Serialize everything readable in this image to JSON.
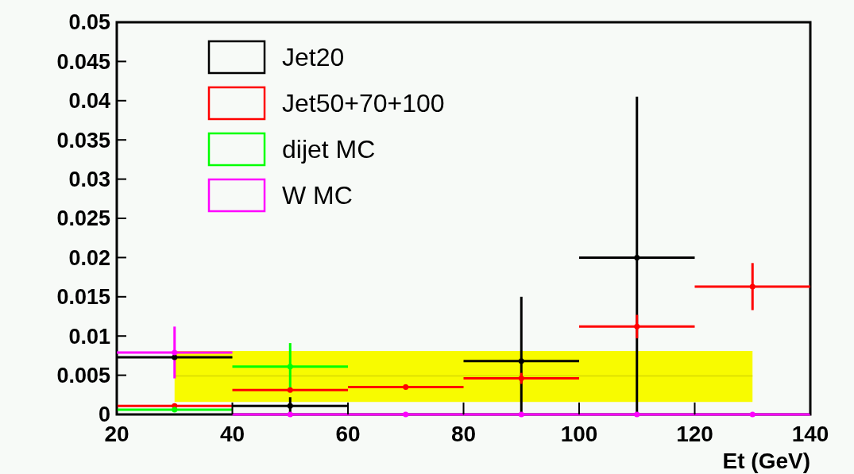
{
  "chart_data": {
    "type": "scatter",
    "xlabel": "Et (GeV)",
    "xlim": [
      20,
      140
    ],
    "ylim": [
      0,
      0.05
    ],
    "xticks": [
      20,
      40,
      60,
      80,
      100,
      120,
      140
    ],
    "yticks": [
      {
        "value": 0,
        "label": "0"
      },
      0.005,
      0.01,
      0.015,
      0.02,
      0.025,
      0.03,
      0.035,
      0.04,
      0.045,
      0.05
    ],
    "marker": "circle",
    "legend": "top left",
    "grid": false,
    "series": [
      {
        "type": "line",
        "marker": "none",
        "color": "#d8da00",
        "x": [
          30,
          80,
          130
        ],
        "values": [
          0.0049,
          0.0049,
          0.0049
        ],
        "lower": [
          0.0016,
          0.0016,
          0.0016
        ],
        "upper": [
          0.0081,
          0.0081,
          0.0081
        ]
      },
      {
        "name": "Jet20",
        "color": "#000000",
        "x": [
          30,
          50,
          90,
          110
        ],
        "values": [
          0.0073,
          0.0011,
          0.0068,
          0.02
        ],
        "errors": [
          null,
          0.0011,
          [
            0,
            0.015
          ],
          [
            0,
            0.0405
          ]
        ],
        "xerrors": [
          10,
          10,
          10,
          10
        ]
      },
      {
        "name": "Jet50+70+100",
        "color": "#ff0000",
        "x": [
          30,
          50,
          70,
          90,
          110,
          130
        ],
        "values": [
          0.0011,
          0.0031,
          0.0035,
          0.0046,
          0.0112,
          0.0163
        ],
        "errors": [
          null,
          null,
          0.0003,
          0.0007,
          0.0015,
          0.003
        ],
        "xerrors": [
          10,
          10,
          10,
          10,
          10,
          10
        ]
      },
      {
        "name": "dijet MC",
        "color": "#00ff00",
        "x": [
          30,
          50
        ],
        "values": [
          0.0006,
          0.0061
        ],
        "errors": [
          null,
          0.003
        ],
        "xerrors": [
          10,
          10
        ]
      },
      {
        "name": "W MC",
        "color": "#ff00ff",
        "x": [
          30,
          50,
          70,
          90,
          110,
          130
        ],
        "values": [
          0.0079,
          0,
          0,
          0,
          0,
          0
        ],
        "errors": [
          0.0033,
          null,
          null,
          null,
          null,
          null
        ],
        "xerrors": [
          10,
          10,
          10,
          10,
          10,
          10
        ]
      }
    ]
  }
}
